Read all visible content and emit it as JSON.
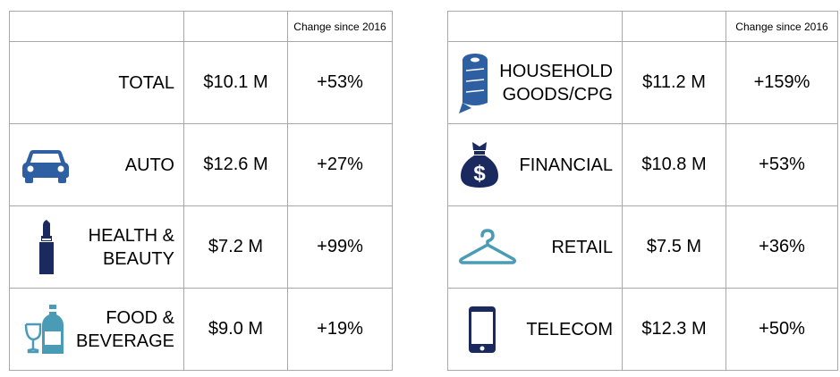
{
  "header": {
    "change_label": "Change since 2016"
  },
  "left_rows": [
    {
      "category": "TOTAL",
      "value": "$10.1 M",
      "change": "+53%",
      "icon": ""
    },
    {
      "category": "AUTO",
      "value": "$12.6 M",
      "change": "+27%",
      "icon": "car-icon"
    },
    {
      "category": "HEALTH & BEAUTY",
      "value": "$7.2 M",
      "change": "+99%",
      "icon": "lipstick-icon"
    },
    {
      "category": "FOOD & BEVERAGE",
      "value": "$9.0 M",
      "change": "+19%",
      "icon": "wine-bottle-glass-icon"
    }
  ],
  "right_rows": [
    {
      "category": "HOUSEHOLD GOODS/CPG",
      "value": "$11.2 M",
      "change": "+159%",
      "icon": "paper-towel-roll-icon"
    },
    {
      "category": "FINANCIAL",
      "value": "$10.8 M",
      "change": "+53%",
      "icon": "money-bag-icon"
    },
    {
      "category": "RETAIL",
      "value": "$7.5 M",
      "change": "+36%",
      "icon": "clothes-hanger-icon"
    },
    {
      "category": "TELECOM",
      "value": "$12.3 M",
      "change": "+50%",
      "icon": "smartphone-icon"
    }
  ],
  "colors": {
    "icon_navy": "#1b2a5e",
    "icon_blue": "#2e5fa3",
    "icon_teal": "#4a9bb5",
    "border": "#a9a9a9"
  }
}
